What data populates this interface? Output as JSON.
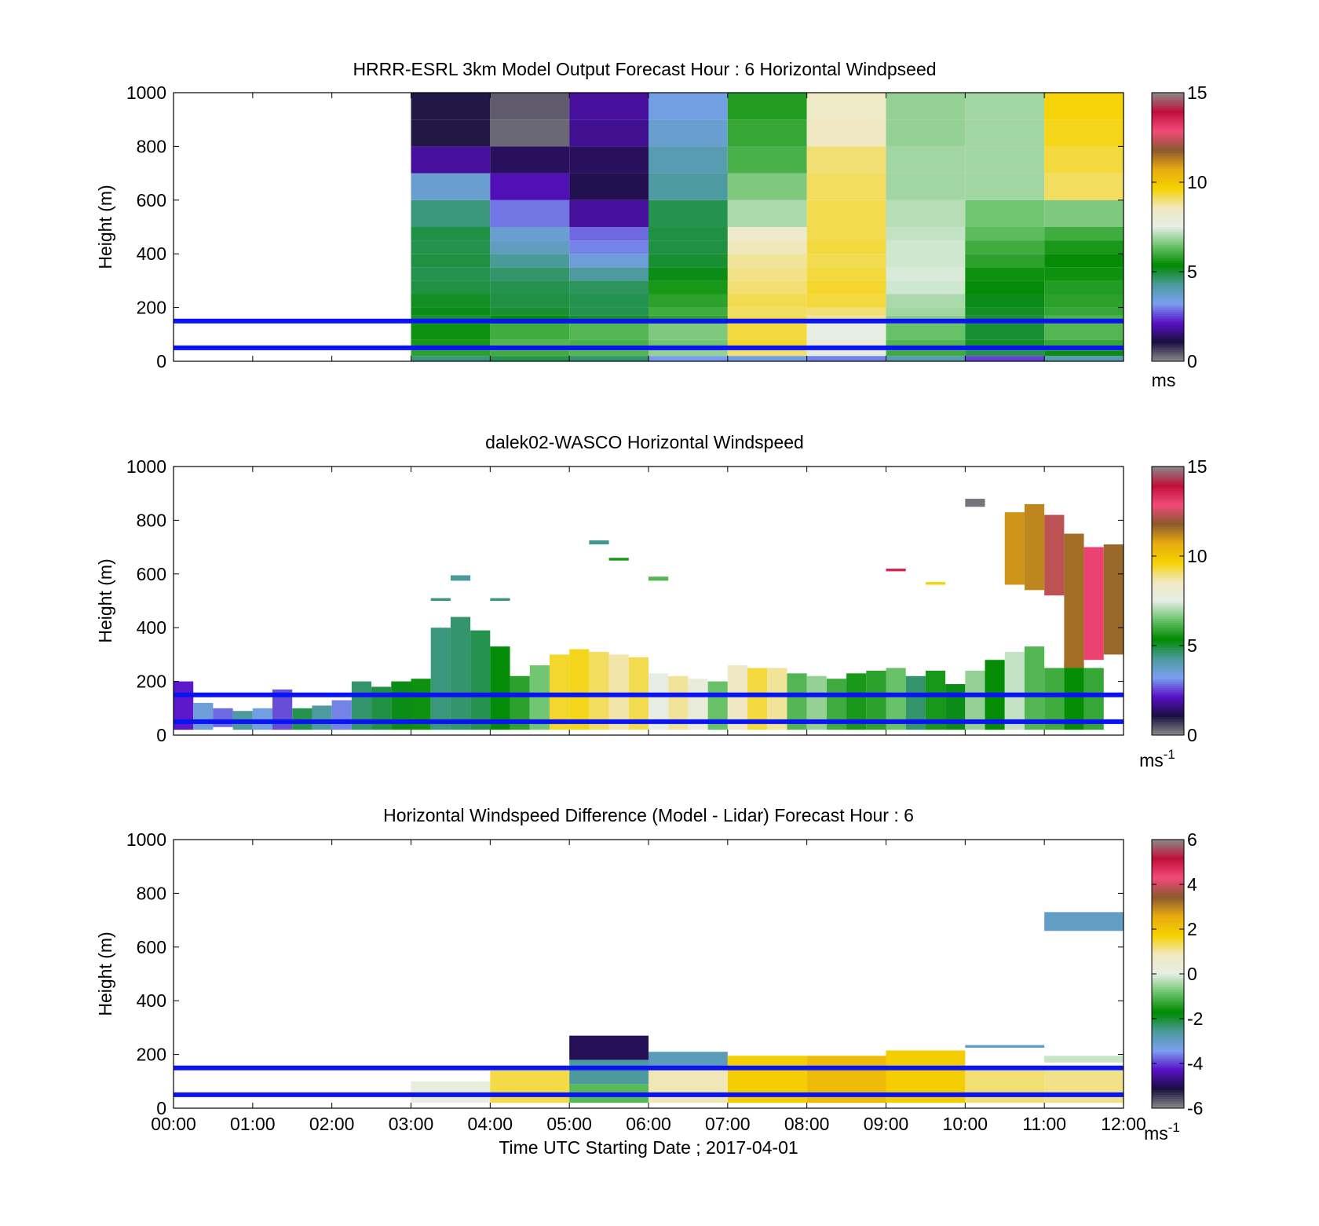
{
  "figure": {
    "xlabel": "Time UTC  Starting Date ; 2017-04-01",
    "xtick_labels": [
      "00:00",
      "01:00",
      "02:00",
      "03:00",
      "04:00",
      "05:00",
      "06:00",
      "07:00",
      "08:00",
      "09:00",
      "10:00",
      "11:00",
      "12:00"
    ],
    "ytick_labels": [
      "0",
      "200",
      "400",
      "600",
      "800",
      "1000"
    ],
    "reference_line_color": "#0a14f0",
    "reference_heights_m": [
      50,
      150
    ]
  },
  "colormap": {
    "name": "windspeed-diverging",
    "stops": [
      "#8a8a8a",
      "#1a1040",
      "#5a10c8",
      "#7aa0f0",
      "#4a9a9a",
      "#008a00",
      "#6ac26a",
      "#e6eee6",
      "#f0e8c0",
      "#f5d200",
      "#e8aa10",
      "#8a5a30",
      "#f24a7a",
      "#c0103a",
      "#8a8a8a"
    ]
  },
  "chart_data": [
    {
      "type": "heatmap",
      "title": "HRRR-ESRL 3km Model Output   Forecast Hour : 6 Horizontal Windpseed",
      "xlabel": "",
      "ylabel": "Height (m)",
      "xlim": [
        0,
        12
      ],
      "ylim": [
        0,
        1000
      ],
      "colorbar": {
        "min": 0,
        "max": 15,
        "ticks": [
          "0",
          "5",
          "10",
          "15"
        ],
        "unit": "ms"
      },
      "grid": false,
      "x_hours": [
        3,
        4,
        5,
        6,
        7,
        8,
        9,
        10,
        11
      ],
      "rows_height_m": [
        [
          0,
          20
        ],
        [
          20,
          40
        ],
        [
          40,
          80
        ],
        [
          80,
          140
        ],
        [
          140,
          170
        ],
        [
          170,
          200
        ],
        [
          200,
          250
        ],
        [
          250,
          300
        ],
        [
          300,
          350
        ],
        [
          350,
          400
        ],
        [
          400,
          450
        ],
        [
          450,
          500
        ],
        [
          500,
          600
        ],
        [
          600,
          700
        ],
        [
          700,
          800
        ],
        [
          800,
          900
        ],
        [
          900,
          1000
        ]
      ],
      "values": [
        [
          4.5,
          4.8,
          4.6,
          3.2,
          3.4,
          3.0,
          4.0,
          2.5,
          4.0
        ],
        [
          5.8,
          6.0,
          6.2,
          6.8,
          9.0,
          7.6,
          6.0,
          4.8,
          5.2
        ],
        [
          5.6,
          6.2,
          6.1,
          6.5,
          9.4,
          7.8,
          6.2,
          5.1,
          5.9
        ],
        [
          5.5,
          6.0,
          6.2,
          6.6,
          9.3,
          7.5,
          6.4,
          5.0,
          6.2
        ],
        [
          5.0,
          5.3,
          5.1,
          5.8,
          9.2,
          8.8,
          6.7,
          5.0,
          6.1
        ],
        [
          5.2,
          5.0,
          4.8,
          6.0,
          9.1,
          9.0,
          6.9,
          5.1,
          5.9
        ],
        [
          5.1,
          4.9,
          4.8,
          5.8,
          9.2,
          9.3,
          7.0,
          5.2,
          5.8
        ],
        [
          4.9,
          4.8,
          4.7,
          5.6,
          9.0,
          9.4,
          7.3,
          5.3,
          5.7
        ],
        [
          4.8,
          4.6,
          4.2,
          5.2,
          8.9,
          9.3,
          7.4,
          5.5,
          5.5
        ],
        [
          4.9,
          4.3,
          3.5,
          5.0,
          8.8,
          9.2,
          7.3,
          5.8,
          5.4
        ],
        [
          4.8,
          3.8,
          3.0,
          4.9,
          8.6,
          9.3,
          7.3,
          6.0,
          5.6
        ],
        [
          4.9,
          3.6,
          2.8,
          4.9,
          8.2,
          9.2,
          7.2,
          6.3,
          6.0
        ],
        [
          4.5,
          2.9,
          1.8,
          4.8,
          7.0,
          9.2,
          7.1,
          6.5,
          6.6
        ],
        [
          3.6,
          2.0,
          1.2,
          4.2,
          6.6,
          9.1,
          6.9,
          6.9,
          9.1
        ],
        [
          1.8,
          1.3,
          1.3,
          4.0,
          6.1,
          9.0,
          6.9,
          6.9,
          9.3
        ],
        [
          1.0,
          0.3,
          1.7,
          3.6,
          5.9,
          8.5,
          6.8,
          6.9,
          9.5
        ],
        [
          1.0,
          0.4,
          1.8,
          3.4,
          5.7,
          8.4,
          6.8,
          6.9,
          9.6
        ]
      ]
    },
    {
      "type": "heatmap",
      "title": "dalek02-WASCO  Horizontal Windspeed",
      "xlabel": "",
      "ylabel": "Height (m)",
      "xlim": [
        0,
        12
      ],
      "ylim": [
        0,
        1000
      ],
      "colorbar": {
        "min": 0,
        "max": 15,
        "ticks": [
          "0",
          "5",
          "10",
          "15"
        ],
        "unit": "ms-1"
      },
      "grid": false,
      "x_step_hours": 0.25,
      "cells": [
        {
          "x": 0.0,
          "y0": 20,
          "y1": 200,
          "v": 2.2
        },
        {
          "x": 0.25,
          "y0": 20,
          "y1": 120,
          "v": 3.5
        },
        {
          "x": 0.5,
          "y0": 30,
          "y1": 100,
          "v": 2.8
        },
        {
          "x": 0.75,
          "y0": 20,
          "y1": 90,
          "v": 4.2
        },
        {
          "x": 1.0,
          "y0": 20,
          "y1": 100,
          "v": 3.4
        },
        {
          "x": 1.25,
          "y0": 20,
          "y1": 170,
          "v": 2.6
        },
        {
          "x": 1.5,
          "y0": 20,
          "y1": 100,
          "v": 4.8
        },
        {
          "x": 1.75,
          "y0": 20,
          "y1": 110,
          "v": 4.2
        },
        {
          "x": 2.0,
          "y0": 20,
          "y1": 130,
          "v": 3.0
        },
        {
          "x": 2.25,
          "y0": 20,
          "y1": 200,
          "v": 4.6
        },
        {
          "x": 2.5,
          "y0": 20,
          "y1": 180,
          "v": 4.9
        },
        {
          "x": 2.75,
          "y0": 20,
          "y1": 200,
          "v": 5.2
        },
        {
          "x": 3.0,
          "y0": 20,
          "y1": 210,
          "v": 5.5
        },
        {
          "x": 3.25,
          "y0": 20,
          "y1": 400,
          "v": 4.5
        },
        {
          "x": 3.5,
          "y0": 20,
          "y1": 440,
          "v": 4.6
        },
        {
          "x": 3.75,
          "y0": 20,
          "y1": 390,
          "v": 4.8
        },
        {
          "x": 4.0,
          "y0": 20,
          "y1": 330,
          "v": 5.3
        },
        {
          "x": 4.25,
          "y0": 20,
          "y1": 220,
          "v": 5.8
        },
        {
          "x": 4.5,
          "y0": 20,
          "y1": 260,
          "v": 6.5
        },
        {
          "x": 4.75,
          "y0": 20,
          "y1": 300,
          "v": 9.4
        },
        {
          "x": 5.0,
          "y0": 20,
          "y1": 320,
          "v": 9.5
        },
        {
          "x": 5.25,
          "y0": 20,
          "y1": 310,
          "v": 9.1
        },
        {
          "x": 5.5,
          "y0": 20,
          "y1": 300,
          "v": 8.7
        },
        {
          "x": 5.75,
          "y0": 20,
          "y1": 290,
          "v": 9.2
        },
        {
          "x": 6.0,
          "y0": 20,
          "y1": 230,
          "v": 7.6
        },
        {
          "x": 6.25,
          "y0": 20,
          "y1": 220,
          "v": 8.8
        },
        {
          "x": 6.5,
          "y0": 20,
          "y1": 210,
          "v": 7.8
        },
        {
          "x": 6.75,
          "y0": 20,
          "y1": 200,
          "v": 6.4
        },
        {
          "x": 7.0,
          "y0": 20,
          "y1": 260,
          "v": 8.5
        },
        {
          "x": 7.25,
          "y0": 20,
          "y1": 250,
          "v": 9.3
        },
        {
          "x": 7.5,
          "y0": 20,
          "y1": 250,
          "v": 8.8
        },
        {
          "x": 7.75,
          "y0": 20,
          "y1": 230,
          "v": 6.2
        },
        {
          "x": 8.0,
          "y0": 20,
          "y1": 220,
          "v": 6.8
        },
        {
          "x": 8.25,
          "y0": 20,
          "y1": 210,
          "v": 6.0
        },
        {
          "x": 8.5,
          "y0": 20,
          "y1": 230,
          "v": 5.6
        },
        {
          "x": 8.75,
          "y0": 20,
          "y1": 240,
          "v": 5.8
        },
        {
          "x": 9.0,
          "y0": 20,
          "y1": 250,
          "v": 6.4
        },
        {
          "x": 9.25,
          "y0": 20,
          "y1": 220,
          "v": 4.6
        },
        {
          "x": 9.5,
          "y0": 20,
          "y1": 240,
          "v": 5.6
        },
        {
          "x": 9.75,
          "y0": 20,
          "y1": 190,
          "v": 5.2
        },
        {
          "x": 10.0,
          "y0": 20,
          "y1": 240,
          "v": 6.8
        },
        {
          "x": 10.25,
          "y0": 20,
          "y1": 280,
          "v": 5.4
        },
        {
          "x": 10.5,
          "y0": 20,
          "y1": 310,
          "v": 7.2
        },
        {
          "x": 10.75,
          "y0": 20,
          "y1": 330,
          "v": 6.2
        },
        {
          "x": 11.0,
          "y0": 20,
          "y1": 250,
          "v": 6.0
        },
        {
          "x": 11.25,
          "y0": 20,
          "y1": 270,
          "v": 5.4
        },
        {
          "x": 11.5,
          "y0": 20,
          "y1": 250,
          "v": 5.9
        },
        {
          "x": 10.5,
          "y0": 560,
          "y1": 830,
          "v": 11.0
        },
        {
          "x": 10.75,
          "y0": 540,
          "y1": 860,
          "v": 11.2
        },
        {
          "x": 11.0,
          "y0": 520,
          "y1": 820,
          "v": 12.3
        },
        {
          "x": 11.25,
          "y0": 250,
          "y1": 750,
          "v": 11.5
        },
        {
          "x": 11.5,
          "y0": 280,
          "y1": 700,
          "v": 13.0
        },
        {
          "x": 11.75,
          "y0": 300,
          "y1": 710,
          "v": 11.6
        },
        {
          "x": 10.0,
          "y0": 850,
          "y1": 880,
          "v": 0.2
        },
        {
          "x": 9.0,
          "y0": 610,
          "y1": 620,
          "v": 13.5
        },
        {
          "x": 9.5,
          "y0": 560,
          "y1": 570,
          "v": 9.6
        },
        {
          "x": 3.25,
          "y0": 500,
          "y1": 510,
          "v": 4.5
        },
        {
          "x": 3.5,
          "y0": 575,
          "y1": 595,
          "v": 4.3
        },
        {
          "x": 5.25,
          "y0": 710,
          "y1": 725,
          "v": 4.4
        },
        {
          "x": 5.5,
          "y0": 650,
          "y1": 660,
          "v": 5.6
        },
        {
          "x": 6.0,
          "y0": 575,
          "y1": 590,
          "v": 6.2
        },
        {
          "x": 4.0,
          "y0": 500,
          "y1": 510,
          "v": 4.5
        }
      ]
    },
    {
      "type": "heatmap",
      "title": "Horizontal Windspeed Difference (Model - Lidar) Forecast Hour : 6",
      "xlabel": "Time UTC  Starting Date ; 2017-04-01",
      "ylabel": "Height (m)",
      "xlim": [
        0,
        12
      ],
      "ylim": [
        0,
        1000
      ],
      "colorbar": {
        "min": -6,
        "max": 6,
        "ticks": [
          "-6",
          "-4",
          "-2",
          "0",
          "2",
          "4",
          "6"
        ],
        "unit": "ms-1"
      },
      "grid": false,
      "cells": [
        {
          "x0": 3,
          "x1": 4,
          "y0": 20,
          "y1": 100,
          "v": 0.2
        },
        {
          "x0": 4,
          "x1": 5,
          "y0": 20,
          "y1": 140,
          "v": 1.4
        },
        {
          "x0": 5,
          "x1": 6,
          "y0": 20,
          "y1": 90,
          "v": -1.0
        },
        {
          "x0": 5,
          "x1": 6,
          "y0": 90,
          "y1": 180,
          "v": -2.6
        },
        {
          "x0": 5,
          "x1": 6,
          "y0": 180,
          "y1": 270,
          "v": -5.0
        },
        {
          "x0": 6,
          "x1": 7,
          "y0": 20,
          "y1": 150,
          "v": 0.9
        },
        {
          "x0": 6,
          "x1": 7,
          "y0": 150,
          "y1": 210,
          "v": -2.9
        },
        {
          "x0": 7,
          "x1": 8,
          "y0": 20,
          "y1": 195,
          "v": 1.8
        },
        {
          "x0": 8,
          "x1": 9,
          "y0": 20,
          "y1": 195,
          "v": 2.2
        },
        {
          "x0": 9,
          "x1": 10,
          "y0": 20,
          "y1": 215,
          "v": 1.8
        },
        {
          "x0": 10,
          "x1": 11,
          "y0": 20,
          "y1": 140,
          "v": 1.2
        },
        {
          "x0": 10,
          "x1": 11,
          "y0": 225,
          "y1": 235,
          "v": -3.0
        },
        {
          "x0": 11,
          "x1": 12,
          "y0": 20,
          "y1": 140,
          "v": 1.1
        },
        {
          "x0": 11,
          "x1": 12,
          "y0": 170,
          "y1": 195,
          "v": -0.2
        },
        {
          "x0": 11,
          "x1": 12,
          "y0": 660,
          "y1": 730,
          "v": -3.0
        }
      ]
    }
  ]
}
